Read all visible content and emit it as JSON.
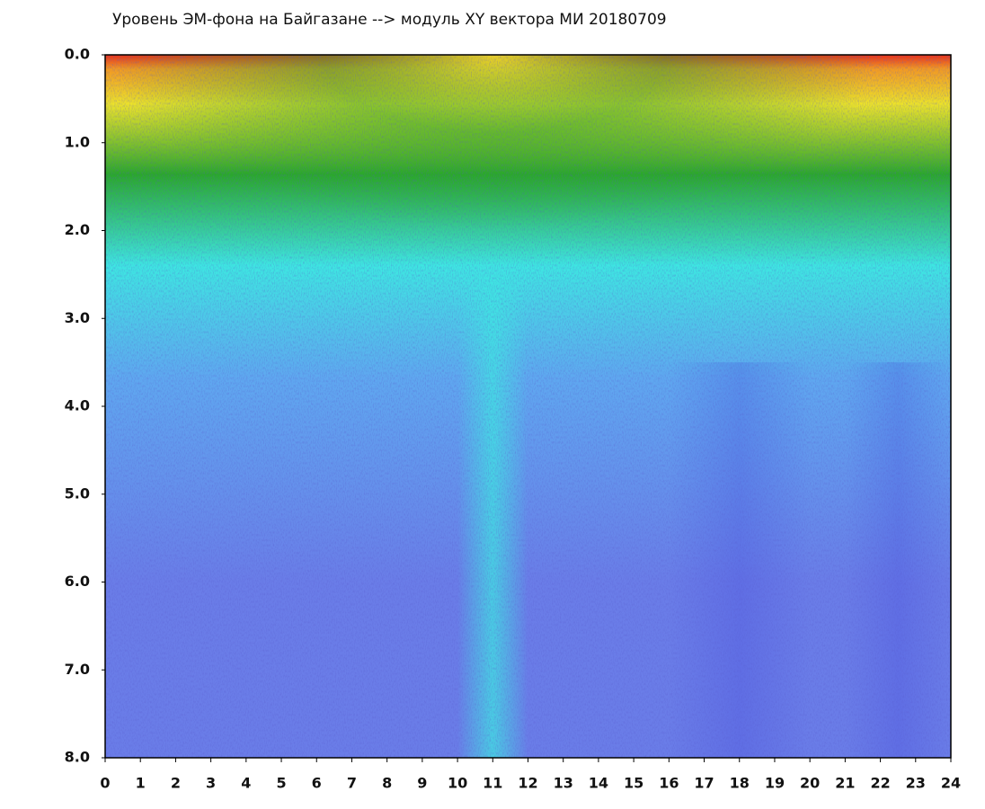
{
  "chart_data": {
    "type": "heatmap",
    "title": "Уровень ЭМ-фона на Байгазане  -->  модуль XY вектора МИ  20180709",
    "xlim": [
      0,
      24
    ],
    "xticks": [
      0,
      1,
      2,
      3,
      4,
      5,
      6,
      7,
      8,
      9,
      10,
      11,
      12,
      13,
      14,
      15,
      16,
      17,
      18,
      19,
      20,
      21,
      22,
      23,
      24
    ],
    "ylim": [
      0,
      8
    ],
    "y_inverted": true,
    "yticks": [
      {
        "value": 0,
        "label": "0.0"
      },
      {
        "value": 1,
        "label": "1.0"
      },
      {
        "value": 2,
        "label": "2.0"
      },
      {
        "value": 3,
        "label": "3.0"
      },
      {
        "value": 4,
        "label": "4.0"
      },
      {
        "value": 5,
        "label": "5.0"
      },
      {
        "value": 6,
        "label": "6.0"
      },
      {
        "value": 7,
        "label": "7.0"
      },
      {
        "value": 8,
        "label": "8.0"
      }
    ],
    "colorscale": [
      "#e8301a",
      "#f39a22",
      "#ece22a",
      "#2aa82a",
      "#3ee6e2",
      "#5fa8f0",
      "#6a7de8",
      "#3a3ad8"
    ]
  }
}
